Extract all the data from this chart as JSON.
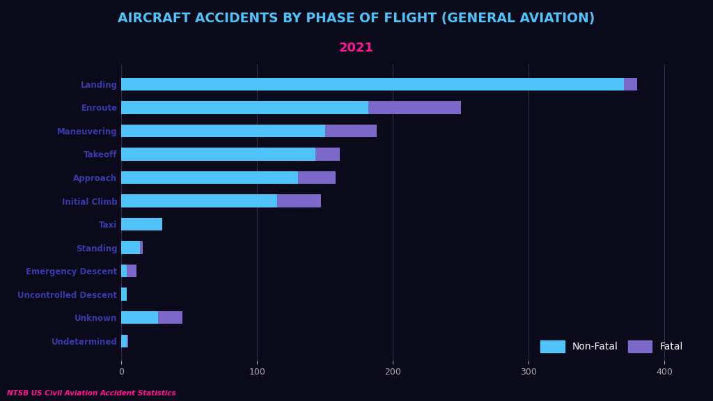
{
  "title": "AIRCRAFT ACCIDENTS BY PHASE OF FLIGHT (GENERAL AVIATION)",
  "subtitle": "2021",
  "source": "NTSB US Civil Aviation Accident Statistics",
  "categories": [
    "Landing",
    "Enroute",
    "Maneuvering",
    "Takeoff",
    "Approach",
    "Initial Climb",
    "Taxi",
    "Standing",
    "Emergency Descent",
    "Uncontrolled Descent",
    "Unknown",
    "Undetermined"
  ],
  "non_fatal": [
    370,
    182,
    150,
    143,
    130,
    115,
    30,
    14,
    4,
    4,
    27,
    4
  ],
  "fatal": [
    10,
    68,
    38,
    18,
    28,
    32,
    0,
    2,
    7,
    0,
    18,
    1
  ],
  "color_nonfatal": "#4fc3f7",
  "color_fatal": "#7b68c8",
  "background_color": "#0a0a1a",
  "title_color": "#4fc3f7",
  "subtitle_color": "#ff1493",
  "label_color": "#3a3aaa",
  "source_color": "#ff1493",
  "grid_color": "#2a2a4a",
  "tick_color": "#aaaaaa",
  "xlim": [
    0,
    420
  ],
  "xticks": [
    0,
    100,
    200,
    300,
    400
  ]
}
